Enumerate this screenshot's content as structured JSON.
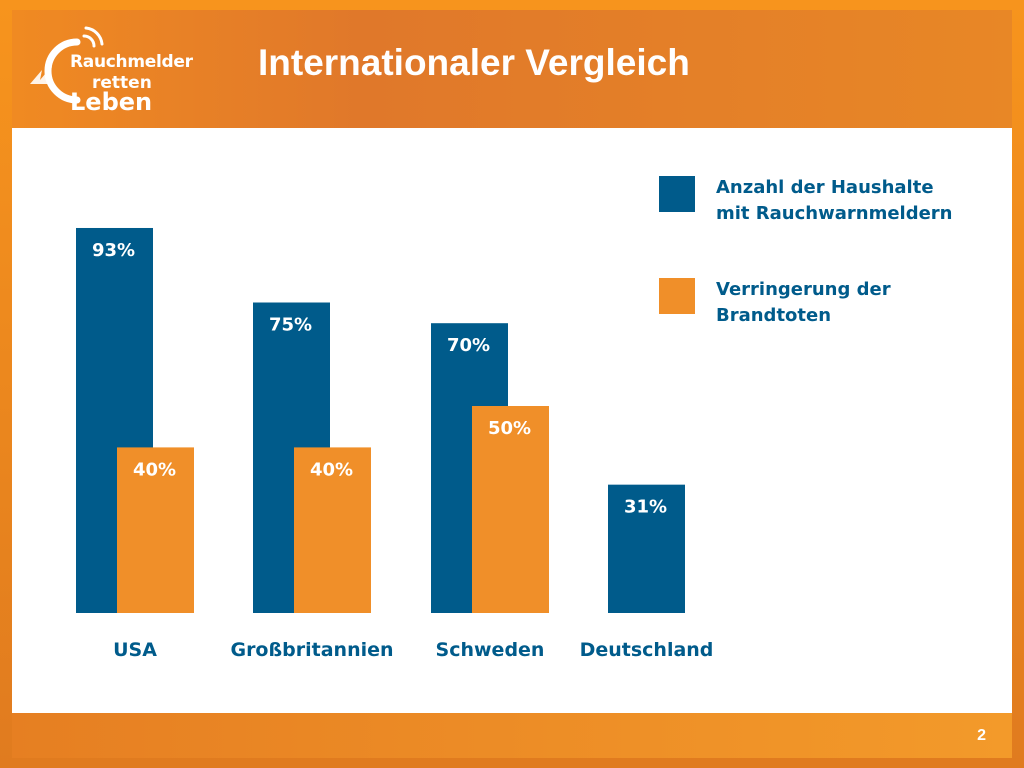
{
  "slide": {
    "title": "Internationaler Vergleich",
    "page_number": "2",
    "logo": {
      "line1": "Rauchmelder",
      "line2": "retten",
      "line3": "Leben"
    }
  },
  "colors": {
    "blue": "#005b8b",
    "orange": "#f08f29",
    "frame": "#f58a1f"
  },
  "chart_data": {
    "type": "bar",
    "title": "",
    "xlabel": "",
    "ylabel": "",
    "ylim": [
      0,
      100
    ],
    "grid": false,
    "legend_position": "top-right",
    "categories": [
      "USA",
      "Großbritannien",
      "Schweden",
      "Deutschland"
    ],
    "series": [
      {
        "name": "Anzahl der Haushalte mit Rauchwarnmeldern",
        "legend_lines": [
          "Anzahl der Haushalte",
          "mit Rauchwarnmeldern"
        ],
        "color": "#005b8b",
        "values": [
          93,
          75,
          70,
          31
        ],
        "labels": [
          "93%",
          "75%",
          "70%",
          "31%"
        ]
      },
      {
        "name": "Verringerung der Brandtoten",
        "legend_lines": [
          "Verringerung der",
          "Brandtoten"
        ],
        "color": "#f08f29",
        "values": [
          40,
          40,
          50,
          null
        ],
        "labels": [
          "40%",
          "40%",
          "50%",
          ""
        ]
      }
    ]
  }
}
